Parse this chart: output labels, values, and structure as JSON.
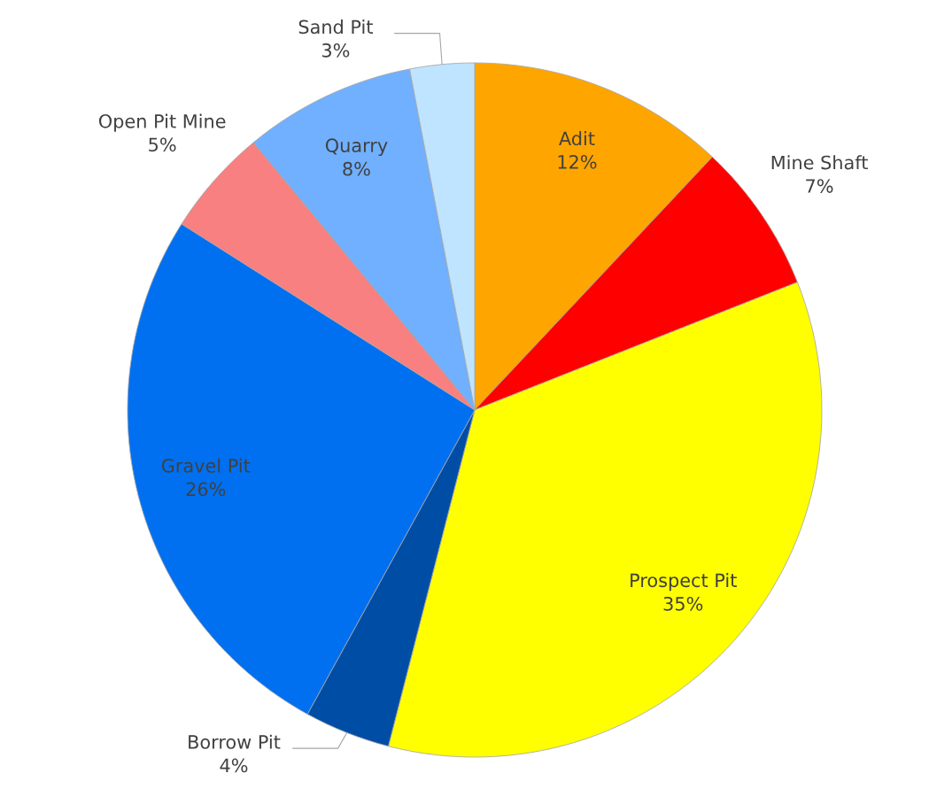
{
  "chart_data": {
    "type": "pie",
    "categories": [
      "Adit",
      "Mine Shaft",
      "Prospect Pit",
      "Borrow Pit",
      "Gravel Pit",
      "Open Pit Mine",
      "Quarry",
      "Sand Pit"
    ],
    "values": [
      12,
      7,
      35,
      4,
      26,
      5,
      8,
      3
    ],
    "colors": [
      "#ffa500",
      "#ff0000",
      "#ffff00",
      "#004da6",
      "#0070f0",
      "#f88080",
      "#70b0ff",
      "#bfe4ff"
    ],
    "value_labels": [
      "12%",
      "7%",
      "35%",
      "4%",
      "26%",
      "5%",
      "8%",
      "3%"
    ]
  }
}
